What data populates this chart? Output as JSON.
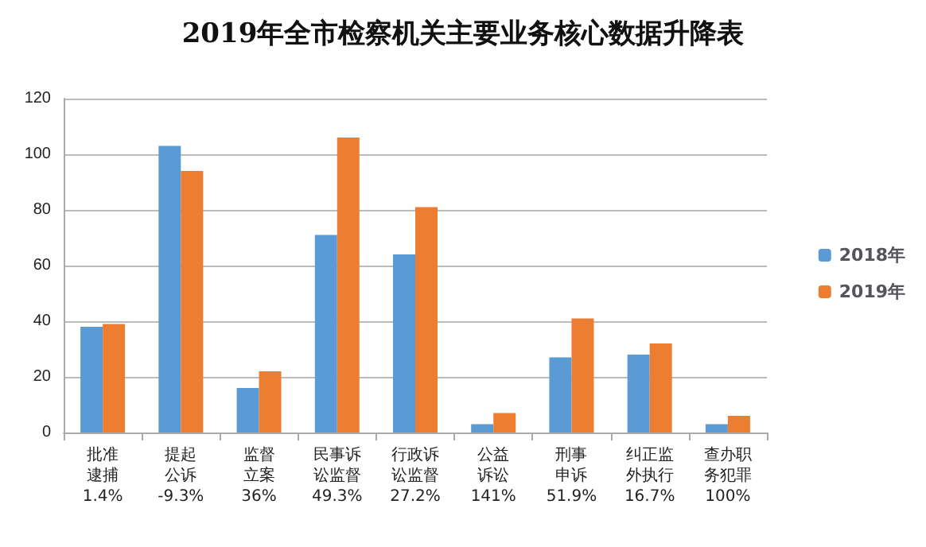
{
  "chart_data": {
    "type": "bar",
    "title": "2019年全市检察机关主要业务核心数据升降表",
    "categories": [
      "批准逮捕1.4%",
      "提起公诉-9.3%",
      "监督立案36%",
      "民事诉讼监督49.3%",
      "行政诉讼监督27.2%",
      "公益诉讼141%",
      "刑事申诉51.9%",
      "纠正监外执行16.7%",
      "查办职务犯罪100%"
    ],
    "series": [
      {
        "name": "2018年",
        "color": "#5b9bd5",
        "values": [
          38,
          103,
          16,
          71,
          64,
          3,
          27,
          28,
          3
        ]
      },
      {
        "name": "2019年",
        "color": "#ed7d31",
        "values": [
          39,
          94,
          22,
          106,
          81,
          7,
          41,
          32,
          6
        ]
      }
    ],
    "ylim": [
      0,
      120
    ],
    "yticks": [
      0,
      20,
      40,
      60,
      80,
      100,
      120
    ],
    "grid": "y",
    "legend": "right"
  }
}
